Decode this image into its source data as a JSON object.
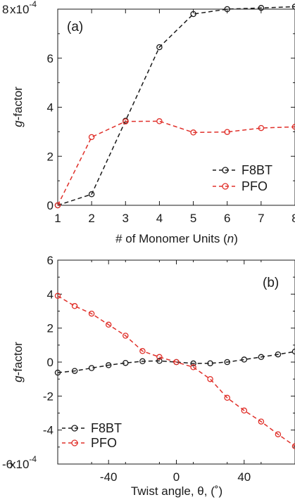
{
  "chart_data": [
    {
      "type": "line",
      "panel_label": "(a)",
      "xlabel_parts": [
        "# of Monomer Units (",
        "n",
        ")"
      ],
      "ylabel_parts": [
        "g",
        "-factor"
      ],
      "y_exponent_label": "x10",
      "y_exponent": "-4",
      "xlim": [
        1,
        8
      ],
      "ylim": [
        0,
        8
      ],
      "xticks": [
        1,
        2,
        3,
        4,
        5,
        6,
        7,
        8
      ],
      "yticks": [
        0,
        2,
        4,
        6,
        8
      ],
      "ytick_labels": [
        "0",
        "2",
        "4",
        "6",
        "8"
      ],
      "legend_position": "lower-right",
      "series": [
        {
          "name": "F8BT",
          "color": "#1a1a1a",
          "x": [
            1,
            2,
            3,
            4,
            5,
            6,
            7,
            8
          ],
          "y": [
            0.0,
            0.45,
            3.45,
            6.45,
            7.8,
            8.0,
            8.05,
            8.1
          ]
        },
        {
          "name": "PFO",
          "color": "#e0302a",
          "x": [
            1,
            2,
            3,
            4,
            5,
            6,
            7,
            8
          ],
          "y": [
            0.0,
            2.78,
            3.42,
            3.43,
            2.97,
            2.99,
            3.15,
            3.2
          ]
        }
      ]
    },
    {
      "type": "line",
      "panel_label": "(b)",
      "xlabel": "Twist angle, θ, (˚)",
      "ylabel_parts": [
        "g",
        "-factor"
      ],
      "y_exponent_label": "x10",
      "y_exponent": "-4",
      "xlim": [
        -70,
        70
      ],
      "ylim": [
        -6,
        6
      ],
      "xticks": [
        -40,
        0,
        40
      ],
      "yticks": [
        -6,
        -4,
        -2,
        0,
        2,
        4,
        6
      ],
      "ytick_labels": [
        "-6",
        "-4",
        "-2",
        "0",
        "2",
        "4",
        "6"
      ],
      "legend_position": "lower-left",
      "series": [
        {
          "name": "F8BT",
          "color": "#1a1a1a",
          "x": [
            -70,
            -60,
            -50,
            -40,
            -30,
            -20,
            -10,
            0,
            10,
            20,
            30,
            40,
            50,
            60,
            70
          ],
          "y": [
            -0.62,
            -0.52,
            -0.35,
            -0.18,
            -0.05,
            0.05,
            0.07,
            0.0,
            -0.08,
            -0.07,
            0.0,
            0.15,
            0.3,
            0.45,
            0.62
          ]
        },
        {
          "name": "PFO",
          "color": "#e0302a",
          "x": [
            -70,
            -60,
            -50,
            -40,
            -30,
            -20,
            -10,
            0,
            10,
            20,
            30,
            40,
            50,
            60,
            70
          ],
          "y": [
            3.9,
            3.3,
            2.85,
            2.2,
            1.55,
            0.65,
            0.3,
            0.0,
            -0.3,
            -1.0,
            -2.1,
            -2.85,
            -3.5,
            -4.25,
            -4.95
          ]
        }
      ]
    }
  ]
}
